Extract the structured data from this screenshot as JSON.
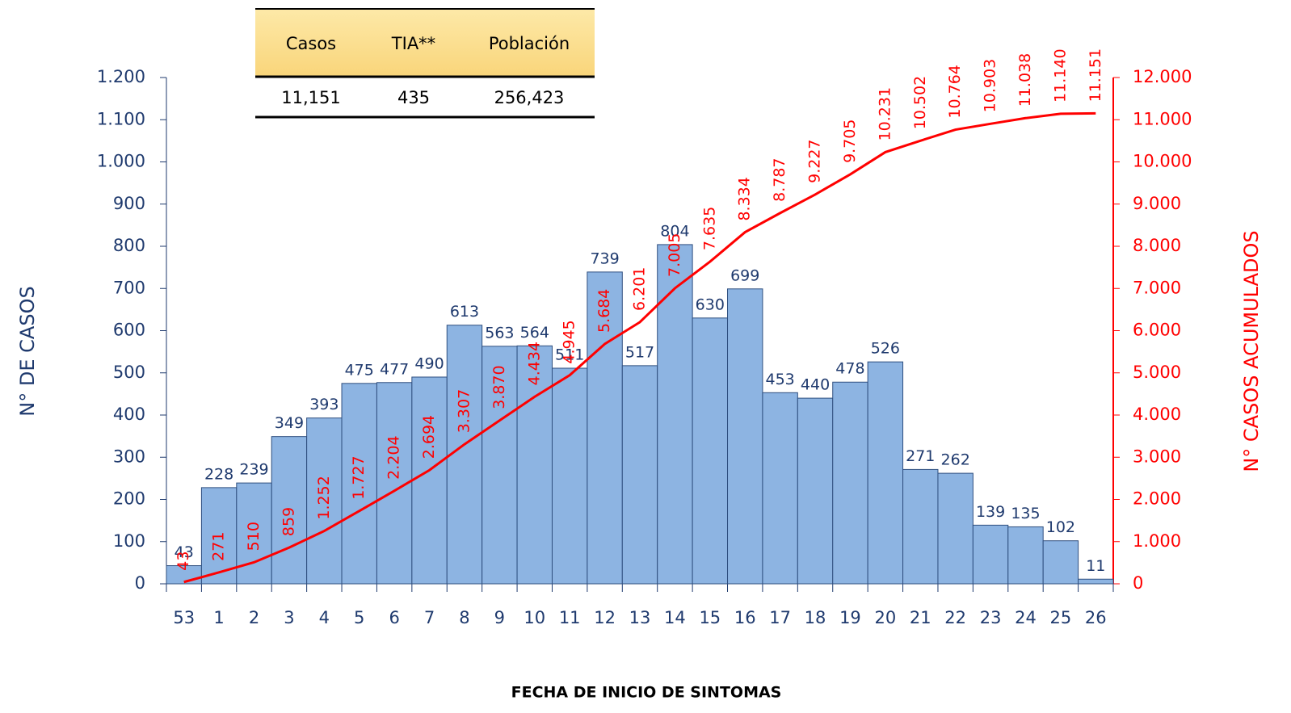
{
  "chart_data": {
    "type": "bar",
    "xlabel": "FECHA DE INICIO DE SINTOMAS",
    "ylabel": "N° DE CASOS",
    "y2label": "N° CASOS ACUMULADOS",
    "categories": [
      "53",
      "1",
      "2",
      "3",
      "4",
      "5",
      "6",
      "7",
      "8",
      "9",
      "10",
      "11",
      "12",
      "13",
      "14",
      "15",
      "16",
      "17",
      "18",
      "19",
      "20",
      "21",
      "22",
      "23",
      "24",
      "25",
      "26"
    ],
    "series": [
      {
        "type": "bar",
        "color": "#8db4e2",
        "values": [
          43,
          228,
          239,
          349,
          393,
          475,
          477,
          490,
          613,
          563,
          564,
          511,
          739,
          517,
          804,
          630,
          699,
          453,
          440,
          478,
          526,
          271,
          262,
          139,
          135,
          102,
          11
        ]
      },
      {
        "type": "line",
        "axis": "y2",
        "color": "#ff0000",
        "values": [
          43,
          271,
          510,
          859,
          1252,
          1727,
          2204,
          2694,
          3307,
          3870,
          4434,
          4945,
          5684,
          6201,
          7005,
          7635,
          8334,
          8787,
          9227,
          9705,
          10231,
          10502,
          10764,
          10903,
          11038,
          11140,
          11151
        ],
        "value_labels": [
          "43",
          "271",
          "510",
          "859",
          "1.252",
          "1.727",
          "2.204",
          "2.694",
          "3.307",
          "3.870",
          "4.434",
          "4.945",
          "5.684",
          "6.201",
          "7.005",
          "7.635",
          "8.334",
          "8.787",
          "9.227",
          "9.705",
          "10.231",
          "10.502",
          "10.764",
          "10.903",
          "11.038",
          "11.140",
          "11.151"
        ]
      }
    ],
    "ylim": [
      0,
      1200
    ],
    "yticks": [
      0,
      100,
      200,
      300,
      400,
      500,
      600,
      700,
      800,
      900,
      {
        "value": 1000,
        "label": "1.000"
      },
      {
        "value": 1100,
        "label": "1.100"
      },
      {
        "value": 1200,
        "label": "1.200"
      }
    ],
    "y2lim": [
      0,
      12000
    ],
    "y2ticks": [
      0,
      {
        "value": 1000,
        "label": "1.000"
      },
      {
        "value": 2000,
        "label": "2.000"
      },
      {
        "value": 3000,
        "label": "3.000"
      },
      {
        "value": 4000,
        "label": "4.000"
      },
      {
        "value": 5000,
        "label": "5.000"
      },
      {
        "value": 6000,
        "label": "6.000"
      },
      {
        "value": 7000,
        "label": "7.000"
      },
      {
        "value": 8000,
        "label": "8.000"
      },
      {
        "value": 9000,
        "label": "9.000"
      },
      {
        "value": 10000,
        "label": "10.000"
      },
      {
        "value": 11000,
        "label": "11.000"
      },
      {
        "value": 12000,
        "label": "12.000"
      }
    ],
    "grid": false
  },
  "table": {
    "header": [
      "Casos",
      "TIA**",
      "Población"
    ],
    "rows": [
      [
        "11,151",
        "435",
        "256,423"
      ]
    ]
  }
}
